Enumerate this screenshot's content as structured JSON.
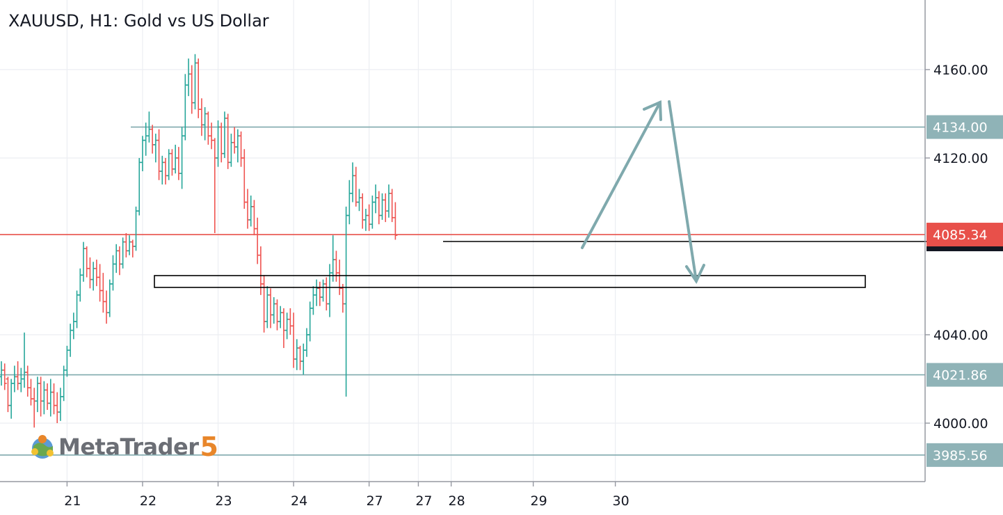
{
  "chart_data": {
    "type": "candlestick",
    "title": "XAUUSD, H1: Gold vs US Dollar",
    "ylim": [
      3978,
      4180
    ],
    "y_ticks": [
      "4160.00",
      "4120.00",
      "4040.00",
      "4000.00"
    ],
    "y_tick_values": [
      4160,
      4120,
      4040,
      4000
    ],
    "x_ticks": [
      "21",
      "22",
      "23",
      "24",
      "27",
      "27",
      "28",
      "29",
      "30"
    ],
    "x_tick_bar_index": [
      20,
      43,
      66,
      89,
      112,
      127,
      137,
      162,
      187
    ],
    "candles": [
      {
        "o": 4021,
        "h": 4028,
        "l": 4017,
        "c": 4024
      },
      {
        "o": 4024,
        "h": 4027,
        "l": 4015,
        "c": 4018
      },
      {
        "o": 4020,
        "h": 4021,
        "l": 4005,
        "c": 4008
      },
      {
        "o": 4008,
        "h": 4020,
        "l": 4002,
        "c": 4018
      },
      {
        "o": 4018,
        "h": 4026,
        "l": 4014,
        "c": 4021
      },
      {
        "o": 4021,
        "h": 4028,
        "l": 4015,
        "c": 4018
      },
      {
        "o": 4018,
        "h": 4025,
        "l": 4014,
        "c": 4020
      },
      {
        "o": 4020,
        "h": 4041,
        "l": 4016,
        "c": 4023
      },
      {
        "o": 4023,
        "h": 4026,
        "l": 4012,
        "c": 4016
      },
      {
        "o": 4016,
        "h": 4020,
        "l": 4008,
        "c": 4011
      },
      {
        "o": 4011,
        "h": 4016,
        "l": 3998,
        "c": 4010
      },
      {
        "o": 4010,
        "h": 4021,
        "l": 4005,
        "c": 4018
      },
      {
        "o": 4018,
        "h": 4021,
        "l": 4003,
        "c": 4010
      },
      {
        "o": 4010,
        "h": 4019,
        "l": 4004,
        "c": 4015
      },
      {
        "o": 4015,
        "h": 4018,
        "l": 4006,
        "c": 4009
      },
      {
        "o": 4009,
        "h": 4020,
        "l": 4003,
        "c": 4014
      },
      {
        "o": 4014,
        "h": 4018,
        "l": 4004,
        "c": 4008
      },
      {
        "o": 4008,
        "h": 4014,
        "l": 4000,
        "c": 4005
      },
      {
        "o": 4005,
        "h": 4016,
        "l": 4001,
        "c": 4012
      },
      {
        "o": 4012,
        "h": 4026,
        "l": 4010,
        "c": 4024
      },
      {
        "o": 4024,
        "h": 4035,
        "l": 4021,
        "c": 4033
      },
      {
        "o": 4033,
        "h": 4045,
        "l": 4030,
        "c": 4042
      },
      {
        "o": 4042,
        "h": 4050,
        "l": 4038,
        "c": 4046
      },
      {
        "o": 4046,
        "h": 4060,
        "l": 4043,
        "c": 4058
      },
      {
        "o": 4058,
        "h": 4070,
        "l": 4055,
        "c": 4067
      },
      {
        "o": 4067,
        "h": 4082,
        "l": 4064,
        "c": 4079
      },
      {
        "o": 4079,
        "h": 4080,
        "l": 4066,
        "c": 4070
      },
      {
        "o": 4070,
        "h": 4075,
        "l": 4061,
        "c": 4065
      },
      {
        "o": 4065,
        "h": 4073,
        "l": 4060,
        "c": 4070
      },
      {
        "o": 4070,
        "h": 4074,
        "l": 4062,
        "c": 4066
      },
      {
        "o": 4066,
        "h": 4072,
        "l": 4055,
        "c": 4060
      },
      {
        "o": 4060,
        "h": 4068,
        "l": 4050,
        "c": 4055
      },
      {
        "o": 4055,
        "h": 4060,
        "l": 4045,
        "c": 4050
      },
      {
        "o": 4050,
        "h": 4065,
        "l": 4048,
        "c": 4063
      },
      {
        "o": 4063,
        "h": 4076,
        "l": 4060,
        "c": 4072
      },
      {
        "o": 4072,
        "h": 4081,
        "l": 4068,
        "c": 4078
      },
      {
        "o": 4078,
        "h": 4080,
        "l": 4067,
        "c": 4072
      },
      {
        "o": 4072,
        "h": 4084,
        "l": 4070,
        "c": 4082
      },
      {
        "o": 4082,
        "h": 4086,
        "l": 4075,
        "c": 4078
      },
      {
        "o": 4078,
        "h": 4085,
        "l": 4076,
        "c": 4082
      },
      {
        "o": 4082,
        "h": 4083,
        "l": 4075,
        "c": 4080
      },
      {
        "o": 4080,
        "h": 4098,
        "l": 4078,
        "c": 4096
      },
      {
        "o": 4096,
        "h": 4120,
        "l": 4094,
        "c": 4118
      },
      {
        "o": 4118,
        "h": 4130,
        "l": 4114,
        "c": 4128
      },
      {
        "o": 4128,
        "h": 4136,
        "l": 4121,
        "c": 4130
      },
      {
        "o": 4130,
        "h": 4141,
        "l": 4127,
        "c": 4133
      },
      {
        "o": 4133,
        "h": 4135,
        "l": 4122,
        "c": 4126
      },
      {
        "o": 4126,
        "h": 4131,
        "l": 4118,
        "c": 4128
      },
      {
        "o": 4128,
        "h": 4133,
        "l": 4110,
        "c": 4114
      },
      {
        "o": 4114,
        "h": 4121,
        "l": 4108,
        "c": 4118
      },
      {
        "o": 4118,
        "h": 4120,
        "l": 4108,
        "c": 4112
      },
      {
        "o": 4112,
        "h": 4124,
        "l": 4110,
        "c": 4122
      },
      {
        "o": 4122,
        "h": 4124,
        "l": 4112,
        "c": 4115
      },
      {
        "o": 4115,
        "h": 4126,
        "l": 4113,
        "c": 4120
      },
      {
        "o": 4120,
        "h": 4125,
        "l": 4110,
        "c": 4113
      },
      {
        "o": 4113,
        "h": 4134,
        "l": 4106,
        "c": 4130
      },
      {
        "o": 4130,
        "h": 4158,
        "l": 4128,
        "c": 4153
      },
      {
        "o": 4153,
        "h": 4165,
        "l": 4148,
        "c": 4158
      },
      {
        "o": 4158,
        "h": 4162,
        "l": 4140,
        "c": 4145
      },
      {
        "o": 4145,
        "h": 4167,
        "l": 4142,
        "c": 4163
      },
      {
        "o": 4163,
        "h": 4165,
        "l": 4138,
        "c": 4142
      },
      {
        "o": 4142,
        "h": 4147,
        "l": 4130,
        "c": 4135
      },
      {
        "o": 4135,
        "h": 4143,
        "l": 4128,
        "c": 4140
      },
      {
        "o": 4140,
        "h": 4141,
        "l": 4126,
        "c": 4130
      },
      {
        "o": 4130,
        "h": 4136,
        "l": 4124,
        "c": 4128
      },
      {
        "o": 4128,
        "h": 4129,
        "l": 4086,
        "c": 4120
      },
      {
        "o": 4120,
        "h": 4137,
        "l": 4116,
        "c": 4134
      },
      {
        "o": 4134,
        "h": 4136,
        "l": 4118,
        "c": 4122
      },
      {
        "o": 4122,
        "h": 4141,
        "l": 4120,
        "c": 4138
      },
      {
        "o": 4138,
        "h": 4140,
        "l": 4115,
        "c": 4118
      },
      {
        "o": 4118,
        "h": 4131,
        "l": 4116,
        "c": 4127
      },
      {
        "o": 4127,
        "h": 4134,
        "l": 4122,
        "c": 4125
      },
      {
        "o": 4125,
        "h": 4133,
        "l": 4118,
        "c": 4130
      },
      {
        "o": 4130,
        "h": 4132,
        "l": 4116,
        "c": 4120
      },
      {
        "o": 4120,
        "h": 4124,
        "l": 4097,
        "c": 4100
      },
      {
        "o": 4100,
        "h": 4106,
        "l": 4088,
        "c": 4092
      },
      {
        "o": 4092,
        "h": 4103,
        "l": 4089,
        "c": 4098
      },
      {
        "o": 4098,
        "h": 4101,
        "l": 4085,
        "c": 4088
      },
      {
        "o": 4088,
        "h": 4093,
        "l": 4072,
        "c": 4076
      },
      {
        "o": 4076,
        "h": 4080,
        "l": 4058,
        "c": 4063
      },
      {
        "o": 4063,
        "h": 4067,
        "l": 4041,
        "c": 4046
      },
      {
        "o": 4046,
        "h": 4062,
        "l": 4043,
        "c": 4058
      },
      {
        "o": 4058,
        "h": 4061,
        "l": 4043,
        "c": 4049
      },
      {
        "o": 4049,
        "h": 4057,
        "l": 4045,
        "c": 4054
      },
      {
        "o": 4054,
        "h": 4056,
        "l": 4042,
        "c": 4046
      },
      {
        "o": 4046,
        "h": 4053,
        "l": 4043,
        "c": 4050
      },
      {
        "o": 4050,
        "h": 4052,
        "l": 4034,
        "c": 4042
      },
      {
        "o": 4042,
        "h": 4050,
        "l": 4038,
        "c": 4047
      },
      {
        "o": 4047,
        "h": 4052,
        "l": 4040,
        "c": 4044
      },
      {
        "o": 4044,
        "h": 4050,
        "l": 4025,
        "c": 4029
      },
      {
        "o": 4029,
        "h": 4038,
        "l": 4024,
        "c": 4034
      },
      {
        "o": 4034,
        "h": 4035,
        "l": 4024,
        "c": 4028
      },
      {
        "o": 4028,
        "h": 4036,
        "l": 4022,
        "c": 4033
      },
      {
        "o": 4033,
        "h": 4043,
        "l": 4030,
        "c": 4040
      },
      {
        "o": 4040,
        "h": 4055,
        "l": 4037,
        "c": 4052
      },
      {
        "o": 4052,
        "h": 4062,
        "l": 4049,
        "c": 4058
      },
      {
        "o": 4058,
        "h": 4065,
        "l": 4053,
        "c": 4061
      },
      {
        "o": 4061,
        "h": 4064,
        "l": 4053,
        "c": 4057
      },
      {
        "o": 4057,
        "h": 4065,
        "l": 4055,
        "c": 4063
      },
      {
        "o": 4063,
        "h": 4066,
        "l": 4051,
        "c": 4054
      },
      {
        "o": 4054,
        "h": 4072,
        "l": 4048,
        "c": 4068
      },
      {
        "o": 4068,
        "h": 4085,
        "l": 4064,
        "c": 4074
      },
      {
        "o": 4074,
        "h": 4078,
        "l": 4064,
        "c": 4068
      },
      {
        "o": 4068,
        "h": 4074,
        "l": 4058,
        "c": 4061
      },
      {
        "o": 4061,
        "h": 4063,
        "l": 4050,
        "c": 4054
      },
      {
        "o": 4054,
        "h": 4098,
        "l": 4012,
        "c": 4094
      },
      {
        "o": 4094,
        "h": 4110,
        "l": 4090,
        "c": 4104
      },
      {
        "o": 4104,
        "h": 4118,
        "l": 4100,
        "c": 4112
      },
      {
        "o": 4112,
        "h": 4116,
        "l": 4098,
        "c": 4100
      },
      {
        "o": 4100,
        "h": 4106,
        "l": 4096,
        "c": 4102
      },
      {
        "o": 4102,
        "h": 4104,
        "l": 4088,
        "c": 4092
      },
      {
        "o": 4092,
        "h": 4097,
        "l": 4087,
        "c": 4094
      },
      {
        "o": 4094,
        "h": 4099,
        "l": 4087,
        "c": 4090
      },
      {
        "o": 4090,
        "h": 4103,
        "l": 4088,
        "c": 4100
      },
      {
        "o": 4100,
        "h": 4108,
        "l": 4095,
        "c": 4102
      },
      {
        "o": 4102,
        "h": 4105,
        "l": 4090,
        "c": 4094
      },
      {
        "o": 4094,
        "h": 4104,
        "l": 4092,
        "c": 4101
      },
      {
        "o": 4101,
        "h": 4104,
        "l": 4091,
        "c": 4096
      },
      {
        "o": 4096,
        "h": 4108,
        "l": 4093,
        "c": 4104
      },
      {
        "o": 4104,
        "h": 4106,
        "l": 4091,
        "c": 4093
      },
      {
        "o": 4093,
        "h": 4100,
        "l": 4083,
        "c": 4085
      }
    ],
    "horizontal_levels": [
      {
        "price": 4134.0,
        "label": "4134.00",
        "color": "#7fa9ad"
      },
      {
        "price": 4021.86,
        "label": "4021.86",
        "color": "#7fa9ad"
      },
      {
        "price": 3985.56,
        "label": "3985.56",
        "color": "#7fa9ad"
      },
      {
        "price": 4085.34,
        "label": "4085.34",
        "color": "#e8504a"
      }
    ],
    "colors": {
      "bull": "#26a69a",
      "bear": "#ef5350",
      "grid": "#eceef2",
      "axis": "#9598a1",
      "arrow": "#7fa9ad",
      "box": "#000000",
      "level_tag": "#8fb3b7",
      "current_price": "#e8504a"
    }
  }
}
